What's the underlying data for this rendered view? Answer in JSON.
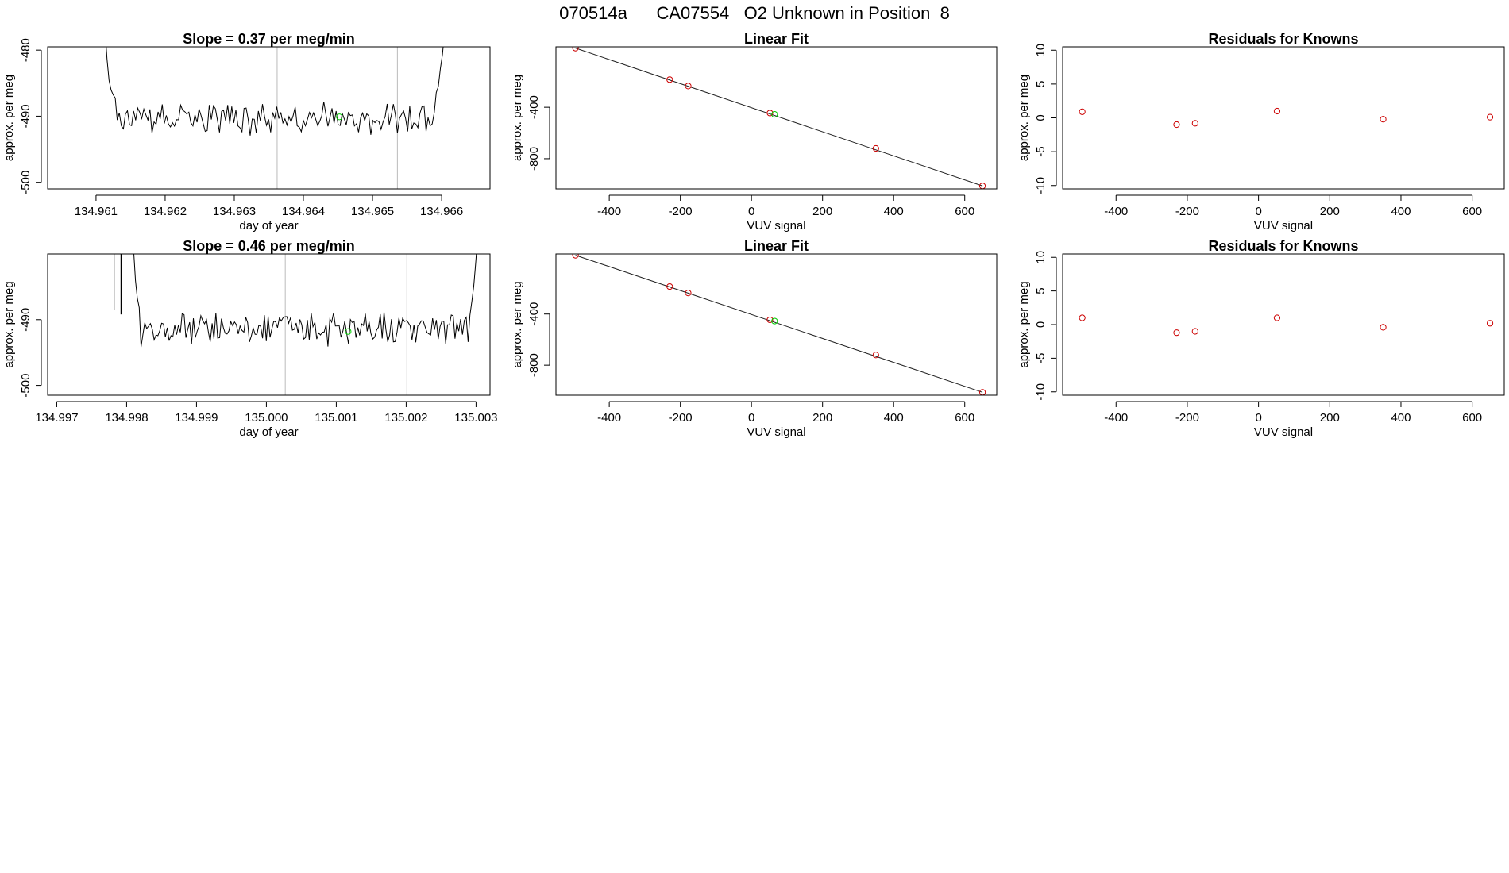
{
  "page_title": "070514a      CA07554   O2 Unknown in Position  8",
  "colors": {
    "unknown": "#00cc00",
    "known": "#cc0000",
    "line": "#000000",
    "marker_line": "#bbbbbb"
  },
  "chart_data": [
    {
      "type": "line",
      "title": "Slope =  0.37  per meg/min",
      "xlabel": "day of year",
      "ylabel": "approx. per meg",
      "xlim": [
        134.9603,
        134.9667
      ],
      "ylim": [
        -501,
        -479.5
      ],
      "xticks": [
        134.961,
        134.962,
        134.963,
        134.964,
        134.965,
        134.966
      ],
      "xtick_labels": [
        "134.961",
        "134.962",
        "134.963",
        "134.964",
        "134.965",
        "134.966"
      ],
      "yticks": [
        -500,
        -490,
        -480
      ],
      "ytick_labels": [
        "-500",
        "-490",
        "-480"
      ],
      "vlines": [
        134.96362,
        134.96536
      ],
      "marker": {
        "x": 134.96452,
        "y": -490.1,
        "color": "green"
      },
      "trace": {
        "x_start": 134.9611,
        "x_end": 134.9661,
        "left_rise": [
          -470,
          -477,
          -481,
          -484,
          -485.5,
          -486.5,
          -487
        ],
        "right_rise": [
          -487,
          -485,
          -483,
          -480.5,
          -477,
          -472,
          -465
        ],
        "baseline": -490.4,
        "noise": 1.8,
        "seed": 37,
        "points": 170
      }
    },
    {
      "type": "scatter",
      "title": "Linear Fit",
      "xlabel": "VUV signal",
      "ylabel": "approx. per meg",
      "xlim": [
        -550,
        690
      ],
      "ylim": [
        -1035,
        70
      ],
      "xticks": [
        -400,
        -200,
        0,
        200,
        400,
        600
      ],
      "xtick_labels": [
        "-400",
        "-200",
        "0",
        "200",
        "400",
        "600"
      ],
      "yticks": [
        -800,
        -400
      ],
      "ytick_labels": [
        "-800",
        "-400"
      ],
      "fit_line": {
        "x": [
          -495,
          650
        ],
        "y": [
          60,
          -1012
        ]
      },
      "knowns": [
        {
          "x": -495,
          "y": 60
        },
        {
          "x": -230,
          "y": -185
        },
        {
          "x": -178,
          "y": -235
        },
        {
          "x": 52,
          "y": -445
        },
        {
          "x": 350,
          "y": -720
        },
        {
          "x": 650,
          "y": -1012
        }
      ],
      "unknowns": [
        {
          "x": 65,
          "y": -455
        }
      ]
    },
    {
      "type": "scatter",
      "title": "Residuals for Knowns",
      "xlabel": "VUV signal",
      "ylabel": "approx. per meg",
      "xlim": [
        -550,
        690
      ],
      "ylim": [
        -10.5,
        10.5
      ],
      "xticks": [
        -400,
        -200,
        0,
        200,
        400,
        600
      ],
      "xtick_labels": [
        "-400",
        "-200",
        "0",
        "200",
        "400",
        "600"
      ],
      "yticks": [
        -10,
        -5,
        0,
        5,
        10
      ],
      "ytick_labels": [
        "-10",
        "-5",
        "0",
        "5",
        "10"
      ],
      "knowns": [
        {
          "x": -495,
          "y": 0.9
        },
        {
          "x": -230,
          "y": -1.0
        },
        {
          "x": -178,
          "y": -0.8
        },
        {
          "x": 52,
          "y": 1.0
        },
        {
          "x": 350,
          "y": -0.2
        },
        {
          "x": 650,
          "y": 0.1
        }
      ]
    },
    {
      "type": "line",
      "title": "Slope =  0.46  per meg/min",
      "xlabel": "day of year",
      "ylabel": "approx. per meg",
      "xlim": [
        134.99687,
        135.0032
      ],
      "ylim": [
        -501.5,
        -480
      ],
      "xticks": [
        134.997,
        134.998,
        134.999,
        135.0,
        135.001,
        135.002,
        135.003
      ],
      "xtick_labels": [
        "134.997",
        "134.998",
        "134.999",
        "135.000",
        "135.001",
        "135.002",
        "135.003"
      ],
      "yticks": [
        -500,
        -490
      ],
      "ytick_labels": [
        "-500",
        "-490"
      ],
      "vlines": [
        135.00027,
        135.00201
      ],
      "marker": {
        "x": 135.00117,
        "y": -491.8,
        "color": "green"
      },
      "trace": {
        "x_start": 134.9978,
        "x_end": 135.0032,
        "spikes": [
          {
            "x": 134.99782,
            "top": -479,
            "bottom": -488.5
          },
          {
            "x": 134.99792,
            "top": -479,
            "bottom": -489.2
          }
        ],
        "left_rise": [
          -479,
          -484,
          -486.5,
          -488
        ],
        "right_rise": [
          -489,
          -487,
          -485,
          -482,
          -478
        ],
        "left_start": 134.9981,
        "right_end": 135.00302,
        "baseline": -491.5,
        "noise": 1.9,
        "seed": 46,
        "points": 185
      }
    },
    {
      "type": "scatter",
      "title": "Linear Fit",
      "xlabel": "VUV signal",
      "ylabel": "approx. per meg",
      "xlim": [
        -550,
        690
      ],
      "ylim": [
        -1035,
        70
      ],
      "xticks": [
        -400,
        -200,
        0,
        200,
        400,
        600
      ],
      "xtick_labels": [
        "-400",
        "-200",
        "0",
        "200",
        "400",
        "600"
      ],
      "yticks": [
        -800,
        -400
      ],
      "ytick_labels": [
        "-800",
        "-400"
      ],
      "fit_line": {
        "x": [
          -495,
          650
        ],
        "y": [
          60,
          -1012
        ]
      },
      "knowns": [
        {
          "x": -495,
          "y": 60
        },
        {
          "x": -230,
          "y": -185
        },
        {
          "x": -178,
          "y": -235
        },
        {
          "x": 52,
          "y": -445
        },
        {
          "x": 350,
          "y": -720
        },
        {
          "x": 650,
          "y": -1012
        }
      ],
      "unknowns": [
        {
          "x": 65,
          "y": -455
        }
      ]
    },
    {
      "type": "scatter",
      "title": "Residuals for Knowns",
      "xlabel": "VUV signal",
      "ylabel": "approx. per meg",
      "xlim": [
        -550,
        690
      ],
      "ylim": [
        -10.5,
        10.5
      ],
      "xticks": [
        -400,
        -200,
        0,
        200,
        400,
        600
      ],
      "xtick_labels": [
        "-400",
        "-200",
        "0",
        "200",
        "400",
        "600"
      ],
      "yticks": [
        -10,
        -5,
        0,
        5,
        10
      ],
      "ytick_labels": [
        "-10",
        "-5",
        "0",
        "5",
        "10"
      ],
      "knowns": [
        {
          "x": -495,
          "y": 1.0
        },
        {
          "x": -230,
          "y": -1.2
        },
        {
          "x": -178,
          "y": -1.0
        },
        {
          "x": 52,
          "y": 1.0
        },
        {
          "x": 350,
          "y": -0.4
        },
        {
          "x": 650,
          "y": 0.2
        }
      ]
    }
  ]
}
